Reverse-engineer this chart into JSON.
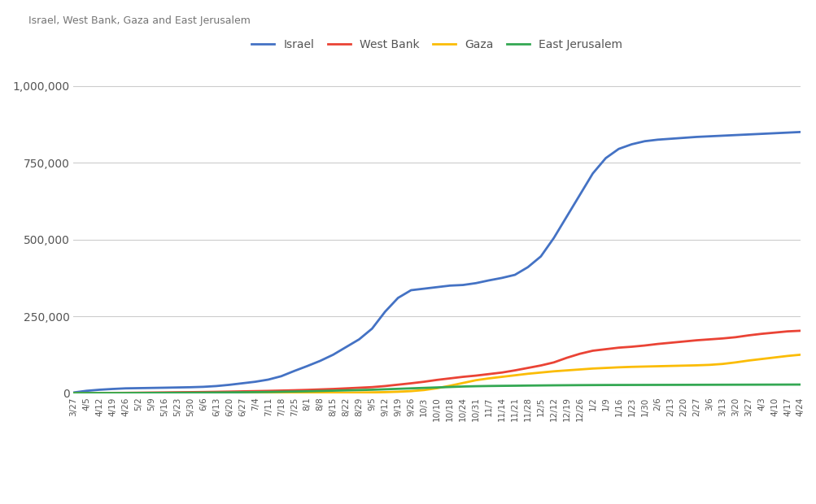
{
  "title": "Israel, West Bank, Gaza and East Jerusalem",
  "x_labels": [
    "3/27",
    "4/5",
    "4/12",
    "4/19",
    "4/26",
    "5/2",
    "5/9",
    "5/16",
    "5/23",
    "5/30",
    "6/6",
    "6/13",
    "6/20",
    "6/27",
    "7/4",
    "7/11",
    "7/18",
    "7/25",
    "8/1",
    "8/8",
    "8/15",
    "8/22",
    "8/29",
    "9/5",
    "9/12",
    "9/19",
    "9/26",
    "10/3",
    "10/10",
    "10/18",
    "10/24",
    "10/31",
    "11/7",
    "11/14",
    "11/21",
    "11/28",
    "12/5",
    "12/12",
    "12/19",
    "12/26",
    "1/2",
    "1/9",
    "1/16",
    "1/23",
    "1/30",
    "2/6",
    "2/13",
    "2/20",
    "2/27",
    "3/6",
    "3/13",
    "3/20",
    "3/27",
    "4/3",
    "4/10",
    "4/17",
    "4/24"
  ],
  "israel": [
    2000,
    7500,
    11000,
    13500,
    15500,
    16200,
    16900,
    17600,
    18400,
    19200,
    20500,
    23000,
    27000,
    32000,
    37000,
    44000,
    55000,
    72000,
    88000,
    105000,
    125000,
    150000,
    175000,
    210000,
    265000,
    310000,
    335000,
    340000,
    345000,
    350000,
    352000,
    358000,
    367000,
    375000,
    385000,
    410000,
    445000,
    505000,
    575000,
    645000,
    715000,
    765000,
    795000,
    810000,
    820000,
    825000,
    828000,
    831000,
    834000,
    836000,
    838000,
    840000,
    842000,
    844000,
    846000,
    848000,
    850000
  ],
  "west_bank": [
    200,
    380,
    530,
    650,
    900,
    1300,
    1800,
    2200,
    2700,
    3100,
    3600,
    4200,
    4900,
    5700,
    6500,
    7300,
    8300,
    9300,
    10500,
    12000,
    13500,
    15500,
    17500,
    19500,
    23000,
    27500,
    32000,
    37000,
    43000,
    48000,
    53000,
    57000,
    62000,
    67000,
    74000,
    82000,
    90000,
    100000,
    115000,
    128000,
    138000,
    143000,
    148000,
    151000,
    155000,
    160000,
    164000,
    168000,
    172000,
    175000,
    178000,
    182000,
    188000,
    193000,
    197000,
    201000,
    203000
  ],
  "gaza": [
    5,
    10,
    15,
    18,
    25,
    40,
    60,
    90,
    130,
    170,
    220,
    270,
    320,
    380,
    430,
    480,
    560,
    650,
    750,
    900,
    1100,
    1400,
    1900,
    2400,
    3200,
    4500,
    6500,
    10000,
    16000,
    24000,
    33000,
    42000,
    48000,
    53000,
    58000,
    63000,
    67000,
    71000,
    74000,
    77000,
    80000,
    82000,
    84000,
    85500,
    86500,
    87500,
    88500,
    89500,
    90500,
    92000,
    95000,
    100000,
    106000,
    111000,
    116000,
    121000,
    125000
  ],
  "east_jerusalem": [
    30,
    60,
    100,
    160,
    250,
    380,
    550,
    720,
    950,
    1200,
    1500,
    1900,
    2300,
    2800,
    3200,
    3700,
    4400,
    5200,
    6000,
    7000,
    8000,
    9000,
    10000,
    11000,
    12500,
    14000,
    15500,
    17000,
    18500,
    20000,
    21500,
    22500,
    23200,
    23700,
    24100,
    24600,
    25000,
    25400,
    25700,
    26000,
    26200,
    26400,
    26500,
    26600,
    26700,
    26800,
    26900,
    27000,
    27100,
    27200,
    27300,
    27400,
    27500,
    27600,
    27700,
    27800,
    27900
  ],
  "series_colors": {
    "Israel": "#4472C4",
    "West Bank": "#EA4335",
    "Gaza": "#FBBC04",
    "East Jerusalem": "#34A853"
  },
  "ylim": [
    0,
    1050000
  ],
  "yticks": [
    0,
    250000,
    500000,
    750000,
    1000000
  ],
  "ytick_labels": [
    "0",
    "250,000",
    "500,000",
    "750,000",
    "1,000,000"
  ],
  "background_color": "#ffffff",
  "grid_color": "#cccccc",
  "title_color": "#757575",
  "line_width": 2.0
}
